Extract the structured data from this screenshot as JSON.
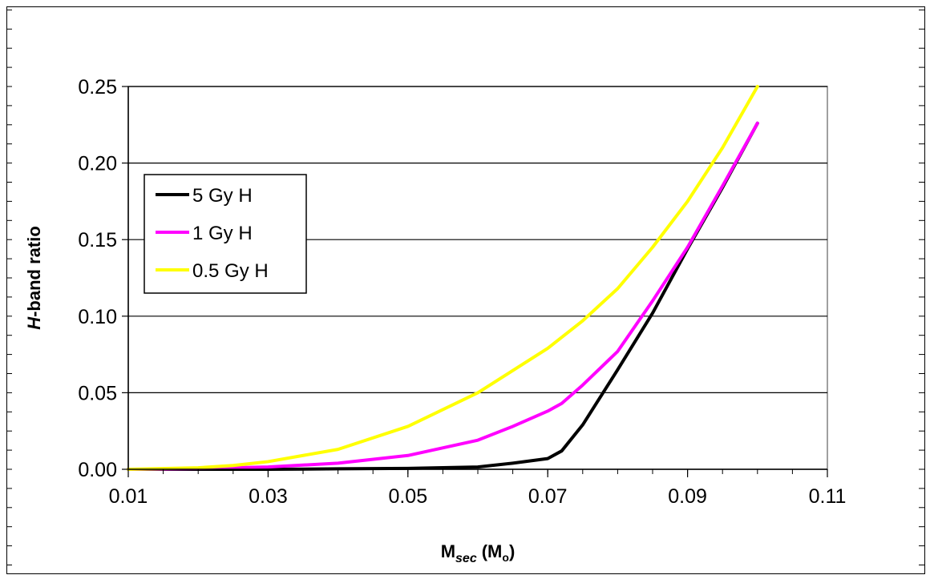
{
  "chart_data": {
    "type": "line",
    "xlabel": {
      "main": "M",
      "sub": "sec",
      "suffix": "(M",
      "suffix_sub": "o",
      "suffix_end": ")"
    },
    "ylabel": {
      "italic": "H",
      "rest": "-band ratio"
    },
    "xlim": [
      0.01,
      0.11
    ],
    "ylim": [
      0,
      0.25
    ],
    "x_ticks": [
      0.01,
      0.03,
      0.05,
      0.07,
      0.09,
      0.11
    ],
    "x_tick_labels": [
      "0.01",
      "0.03",
      "0.05",
      "0.07",
      "0.09",
      "0.11"
    ],
    "x_minor_step": 0.005,
    "y_ticks": [
      0,
      0.05,
      0.1,
      0.15,
      0.2,
      0.25
    ],
    "y_tick_labels": [
      "0.00",
      "0.05",
      "0.10",
      "0.15",
      "0.20",
      "0.25"
    ],
    "y_minor_step": 0.0125,
    "grid": "horizontal-major",
    "legend_position": "upper-left",
    "series": [
      {
        "name": "5 Gy H",
        "color": "#000000",
        "x": [
          0.01,
          0.02,
          0.03,
          0.04,
          0.05,
          0.06,
          0.065,
          0.07,
          0.072,
          0.075,
          0.08,
          0.085,
          0.09,
          0.095,
          0.1
        ],
        "y": [
          0.0,
          0.0,
          0.0,
          0.0003,
          0.0006,
          0.0015,
          0.004,
          0.007,
          0.012,
          0.029,
          0.065,
          0.102,
          0.144,
          0.184,
          0.226
        ]
      },
      {
        "name": "1 Gy H",
        "color": "#ff00ff",
        "x": [
          0.01,
          0.02,
          0.03,
          0.04,
          0.05,
          0.06,
          0.065,
          0.07,
          0.072,
          0.075,
          0.08,
          0.085,
          0.09,
          0.095,
          0.1
        ],
        "y": [
          0.0,
          0.0005,
          0.0015,
          0.004,
          0.009,
          0.019,
          0.028,
          0.038,
          0.043,
          0.055,
          0.077,
          0.11,
          0.145,
          0.185,
          0.226
        ]
      },
      {
        "name": "0.5 Gy H",
        "color": "#ffff00",
        "x": [
          0.01,
          0.02,
          0.025,
          0.03,
          0.04,
          0.05,
          0.06,
          0.07,
          0.075,
          0.08,
          0.085,
          0.09,
          0.095,
          0.1
        ],
        "y": [
          0.0,
          0.001,
          0.0025,
          0.005,
          0.013,
          0.028,
          0.05,
          0.079,
          0.097,
          0.118,
          0.145,
          0.175,
          0.21,
          0.25
        ]
      }
    ]
  }
}
